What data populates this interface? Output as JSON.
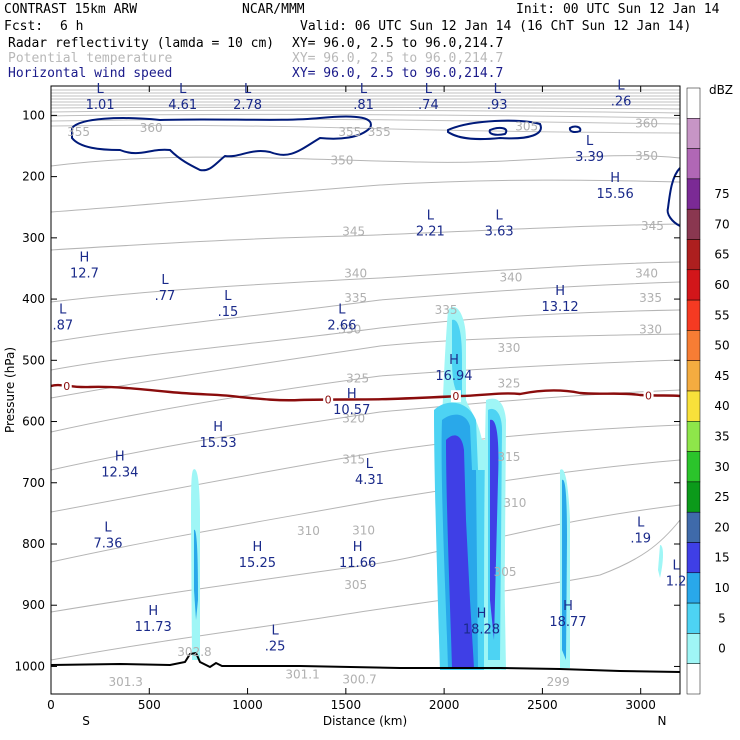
{
  "header": {
    "left_title": "CONTRAST 15km ARW",
    "center_title": "NCAR/MMM",
    "init": "Init: 00 UTC Sun 12 Jan 14",
    "fcst_label": "Fcst:",
    "fcst_value": "6 h",
    "valid": "Valid: 06 UTC Sun 12 Jan 14 (16 ChT Sun 12 Jan 14)",
    "fields": [
      {
        "name": "Radar reflectivity (lamda = 10 cm)",
        "xy": "XY=  96.0,  2.5 to  96.0,214.7"
      },
      {
        "name": "Potential temperature",
        "xy": "XY=  96.0,  2.5 to  96.0,214.7"
      },
      {
        "name": "Horizontal wind speed",
        "xy": "XY=  96.0,  2.5 to  96.0,214.7"
      }
    ]
  },
  "chart_data": {
    "type": "cross-section",
    "xlabel": "Distance (km)",
    "ylabel": "Pressure (hPa)",
    "xlim": [
      0,
      3200
    ],
    "ylim": [
      1045,
      52
    ],
    "xticks": [
      0,
      500,
      1000,
      1500,
      2000,
      2500,
      3000
    ],
    "yticks": [
      100,
      200,
      300,
      400,
      500,
      600,
      700,
      800,
      900,
      1000
    ],
    "x_end_labels": {
      "left": "S",
      "right": "N"
    },
    "colorbar": {
      "unit": "dBZ",
      "levels": [
        "0",
        "5",
        "10",
        "15",
        "20",
        "25",
        "30",
        "35",
        "40",
        "45",
        "50",
        "55",
        "60",
        "65",
        "70",
        "75"
      ],
      "colors": [
        "#ffffff",
        "#9ff6f6",
        "#4dd3f3",
        "#29a8ea",
        "#3f3fe6",
        "#3f6aaa",
        "#0b9a1a",
        "#2bc42b",
        "#8ee64a",
        "#f8e13a",
        "#f4ac40",
        "#f77d34",
        "#f53a22",
        "#d2161a",
        "#ad1f1f",
        "#8a3750",
        "#7b2a95",
        "#b067b5",
        "#c795c6",
        "#ffffff"
      ]
    },
    "theta_labels": [
      {
        "x": 2420,
        "p": 118,
        "text": "305"
      },
      {
        "x": 3030,
        "p": 113,
        "text": "360"
      },
      {
        "x": 3030,
        "p": 166,
        "text": "350"
      },
      {
        "x": 1480,
        "p": 174,
        "text": "350"
      },
      {
        "x": 1540,
        "p": 290,
        "text": "345"
      },
      {
        "x": 3060,
        "p": 281,
        "text": "345"
      },
      {
        "x": 1550,
        "p": 358,
        "text": "340"
      },
      {
        "x": 2340,
        "p": 365,
        "text": "340"
      },
      {
        "x": 3030,
        "p": 358,
        "text": "340"
      },
      {
        "x": 1550,
        "p": 398,
        "text": "335"
      },
      {
        "x": 2010,
        "p": 418,
        "text": "335"
      },
      {
        "x": 3050,
        "p": 398,
        "text": "335"
      },
      {
        "x": 1520,
        "p": 450,
        "text": "330"
      },
      {
        "x": 2330,
        "p": 480,
        "text": "330"
      },
      {
        "x": 3050,
        "p": 450,
        "text": "330"
      },
      {
        "x": 1560,
        "p": 530,
        "text": "325"
      },
      {
        "x": 2330,
        "p": 538,
        "text": "325"
      },
      {
        "x": 1540,
        "p": 595,
        "text": "320"
      },
      {
        "x": 1540,
        "p": 662,
        "text": "315"
      },
      {
        "x": 2330,
        "p": 658,
        "text": "315"
      },
      {
        "x": 2360,
        "p": 733,
        "text": "310"
      },
      {
        "x": 1310,
        "p": 779,
        "text": "310"
      },
      {
        "x": 1590,
        "p": 778,
        "text": "310"
      },
      {
        "x": 2310,
        "p": 846,
        "text": "305"
      },
      {
        "x": 1550,
        "p": 867,
        "text": "305"
      },
      {
        "x": 730,
        "p": 976,
        "text": "302.8"
      },
      {
        "x": 380,
        "p": 1025,
        "text": "301.3"
      },
      {
        "x": 1280,
        "p": 1013,
        "text": "301.1"
      },
      {
        "x": 1570,
        "p": 1021,
        "text": "300.7"
      },
      {
        "x": 2580,
        "p": 1025,
        "text": "299"
      },
      {
        "x": 140,
        "p": 127,
        "text": "355"
      },
      {
        "x": 510,
        "p": 121,
        "text": "360"
      },
      {
        "x": 1520,
        "p": 127,
        "text": "355"
      },
      {
        "x": 1670,
        "p": 127,
        "text": "355"
      }
    ],
    "wind_labels": [
      {
        "x": 250,
        "p": 80,
        "kind": "L",
        "value": "1.01"
      },
      {
        "x": 670,
        "p": 80,
        "kind": "L",
        "value": "4.61"
      },
      {
        "x": 1000,
        "p": 80,
        "kind": "L",
        "value": "2.78"
      },
      {
        "x": 1590,
        "p": 80,
        "kind": "L",
        "value": ".81"
      },
      {
        "x": 1920,
        "p": 80,
        "kind": "L",
        "value": ".74"
      },
      {
        "x": 2270,
        "p": 80,
        "kind": "L",
        "value": ".93"
      },
      {
        "x": 2900,
        "p": 74,
        "kind": "L",
        "value": ".26"
      },
      {
        "x": 2740,
        "p": 165,
        "kind": "L",
        "value": "3.39"
      },
      {
        "x": 2870,
        "p": 225,
        "kind": "H",
        "value": "15.56"
      },
      {
        "x": 1930,
        "p": 286,
        "kind": "L",
        "value": "2.21"
      },
      {
        "x": 2280,
        "p": 286,
        "kind": "L",
        "value": "3.63"
      },
      {
        "x": 170,
        "p": 355,
        "kind": "H",
        "value": "12.7"
      },
      {
        "x": 580,
        "p": 392,
        "kind": "L",
        "value": ".77"
      },
      {
        "x": 900,
        "p": 418,
        "kind": "L",
        "value": ".15"
      },
      {
        "x": 1480,
        "p": 440,
        "kind": "L",
        "value": "2.66"
      },
      {
        "x": 2590,
        "p": 410,
        "kind": "H",
        "value": "13.12"
      },
      {
        "x": 60,
        "p": 440,
        "kind": "L",
        "value": ".87"
      },
      {
        "x": 2050,
        "p": 522,
        "kind": "H",
        "value": "16.94"
      },
      {
        "x": 1530,
        "p": 578,
        "kind": "H",
        "value": "10.57"
      },
      {
        "x": 850,
        "p": 632,
        "kind": "H",
        "value": "15.53"
      },
      {
        "x": 350,
        "p": 680,
        "kind": "H",
        "value": "12.34"
      },
      {
        "x": 1620,
        "p": 692,
        "kind": "L",
        "value": "4.31"
      },
      {
        "x": 3000,
        "p": 788,
        "kind": "L",
        "value": ".19"
      },
      {
        "x": 290,
        "p": 796,
        "kind": "L",
        "value": "7.36"
      },
      {
        "x": 1050,
        "p": 828,
        "kind": "H",
        "value": "15.25"
      },
      {
        "x": 1560,
        "p": 828,
        "kind": "H",
        "value": "11.66"
      },
      {
        "x": 3180,
        "p": 858,
        "kind": "L",
        "value": "1.2"
      },
      {
        "x": 2630,
        "p": 924,
        "kind": "H",
        "value": "18.77"
      },
      {
        "x": 520,
        "p": 932,
        "kind": "H",
        "value": "11.73"
      },
      {
        "x": 2190,
        "p": 936,
        "kind": "H",
        "value": "18.28"
      },
      {
        "x": 1140,
        "p": 964,
        "kind": "L",
        "value": ".25"
      }
    ],
    "freezing_level_label": "0",
    "freezing_level_markers": [
      {
        "x": 80
      },
      {
        "x": 1410
      },
      {
        "x": 2060
      },
      {
        "x": 3040
      }
    ]
  }
}
